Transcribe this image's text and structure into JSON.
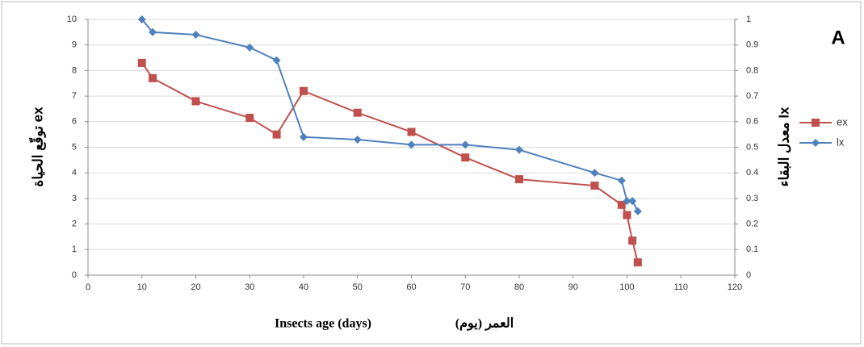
{
  "chart_data": {
    "type": "line",
    "panel_label": "A",
    "xlabel": "Insects age (days)",
    "xlabel_ar": "العمر (يوم)",
    "ylabel": "توقّع الحياة ex",
    "y2label": "معدل البقاء lx",
    "x": [
      10,
      12,
      20,
      30,
      35,
      40,
      50,
      60,
      70,
      80,
      94,
      99,
      100,
      101,
      102
    ],
    "series": [
      {
        "name": "ex",
        "color": "#c0504d",
        "marker": "square",
        "values": [
          8.3,
          7.7,
          6.8,
          6.15,
          5.5,
          7.2,
          6.35,
          5.6,
          4.6,
          3.75,
          3.5,
          2.75,
          2.35,
          1.35,
          0.5
        ]
      },
      {
        "name": "lx",
        "color": "#4f81bd",
        "marker": "diamond",
        "axis": "y2",
        "values": [
          1.0,
          0.95,
          0.94,
          0.89,
          0.84,
          0.54,
          0.53,
          0.51,
          0.51,
          0.49,
          0.4,
          0.37,
          0.29,
          0.29,
          0.25
        ]
      }
    ],
    "xlim": [
      0,
      120
    ],
    "xticks": [
      0,
      10,
      20,
      30,
      40,
      50,
      60,
      70,
      80,
      90,
      100,
      110,
      120
    ],
    "ylim": [
      0,
      10
    ],
    "yticks": [
      0,
      1,
      2,
      3,
      4,
      5,
      6,
      7,
      8,
      9,
      10
    ],
    "y2lim": [
      0,
      1
    ],
    "y2ticks": [
      0,
      0.1,
      0.2,
      0.3,
      0.4,
      0.5,
      0.6,
      0.7,
      0.8,
      0.9,
      1
    ],
    "grid": true,
    "legend": "right"
  }
}
